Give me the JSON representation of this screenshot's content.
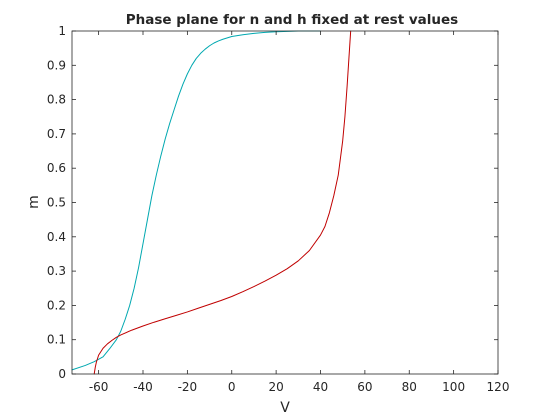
{
  "chart_data": {
    "type": "line",
    "title": "Phase plane for n and h fixed at rest values",
    "xlabel": "V",
    "ylabel": "m",
    "xlim": [
      -72,
      120
    ],
    "ylim": [
      0,
      1
    ],
    "xticks": [
      -60,
      -40,
      -20,
      0,
      20,
      40,
      60,
      80,
      100,
      120
    ],
    "yticks": [
      0,
      0.1,
      0.2,
      0.3,
      0.4,
      0.5,
      0.6,
      0.7,
      0.8,
      0.9,
      1
    ],
    "xtick_labels": [
      "-60",
      "-40",
      "-20",
      "0",
      "20",
      "40",
      "60",
      "80",
      "100",
      "120"
    ],
    "ytick_labels": [
      "0",
      "0.1",
      "0.2",
      "0.3",
      "0.4",
      "0.5",
      "0.6",
      "0.7",
      "0.8",
      "0.9",
      "1"
    ],
    "grid": false,
    "series": [
      {
        "color": "#00a8b0",
        "x": [
          -72,
          -66,
          -62,
          -58,
          -55,
          -52,
          -50,
          -48,
          -46,
          -44,
          -42,
          -40,
          -38,
          -36,
          -34,
          -32,
          -30,
          -28,
          -26,
          -24,
          -22,
          -20,
          -18,
          -16,
          -14,
          -12,
          -10,
          -8,
          -6,
          -4,
          -2,
          0,
          5,
          10,
          15,
          20,
          25,
          30,
          35,
          40
        ],
        "y": [
          0.012,
          0.025,
          0.036,
          0.05,
          0.074,
          0.1,
          0.125,
          0.16,
          0.2,
          0.25,
          0.31,
          0.38,
          0.45,
          0.52,
          0.58,
          0.635,
          0.685,
          0.73,
          0.77,
          0.81,
          0.845,
          0.875,
          0.9,
          0.92,
          0.935,
          0.947,
          0.957,
          0.965,
          0.971,
          0.976,
          0.98,
          0.984,
          0.989,
          0.993,
          0.996,
          0.998,
          0.999,
          1.0,
          1.0,
          1.0
        ]
      },
      {
        "color": "#c00000",
        "x": [
          -62,
          -61.5,
          -61,
          -60,
          -58,
          -56,
          -54,
          -52,
          -50,
          -45,
          -40,
          -35,
          -30,
          -25,
          -20,
          -15,
          -10,
          -5,
          0,
          5,
          10,
          15,
          20,
          25,
          30,
          35,
          40,
          42,
          44,
          46,
          48,
          50,
          51,
          52,
          52.8,
          53.3,
          53.6
        ],
        "y": [
          0.0,
          0.02,
          0.035,
          0.055,
          0.075,
          0.088,
          0.098,
          0.107,
          0.114,
          0.128,
          0.14,
          0.151,
          0.161,
          0.171,
          0.181,
          0.192,
          0.203,
          0.214,
          0.226,
          0.24,
          0.255,
          0.271,
          0.288,
          0.307,
          0.33,
          0.36,
          0.405,
          0.43,
          0.47,
          0.52,
          0.58,
          0.68,
          0.75,
          0.84,
          0.92,
          0.97,
          1.0
        ]
      }
    ]
  }
}
